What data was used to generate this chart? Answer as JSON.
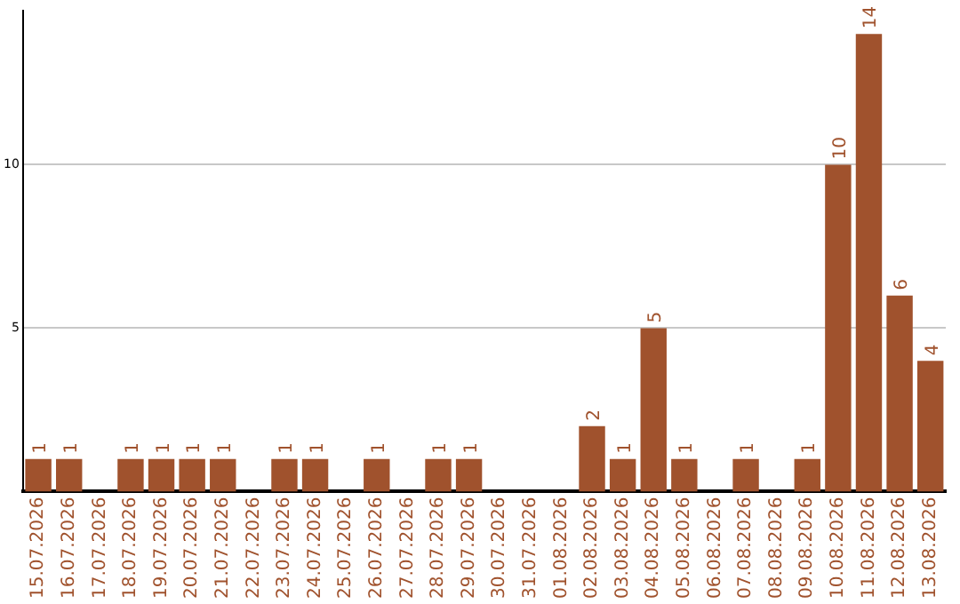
{
  "chart_data": {
    "type": "bar",
    "categories": [
      "15.07.2026",
      "16.07.2026",
      "17.07.2026",
      "18.07.2026",
      "19.07.2026",
      "20.07.2026",
      "21.07.2026",
      "22.07.2026",
      "23.07.2026",
      "24.07.2026",
      "25.07.2026",
      "26.07.2026",
      "27.07.2026",
      "28.07.2026",
      "29.07.2026",
      "30.07.2026",
      "31.07.2026",
      "01.08.2026",
      "02.08.2026",
      "03.08.2026",
      "04.08.2026",
      "05.08.2026",
      "06.08.2026",
      "07.08.2026",
      "08.08.2026",
      "09.08.2026",
      "10.08.2026",
      "11.08.2026",
      "12.08.2026",
      "13.08.2026"
    ],
    "values": [
      1,
      1,
      0,
      1,
      1,
      1,
      1,
      0,
      1,
      1,
      0,
      1,
      0,
      1,
      1,
      0,
      0,
      0,
      2,
      1,
      5,
      1,
      0,
      1,
      0,
      1,
      10,
      14,
      6,
      4
    ],
    "value_labels": [
      "1",
      "1",
      null,
      "1",
      "1",
      "1",
      "1",
      null,
      "1",
      "1",
      null,
      "1",
      null,
      "1",
      "1",
      null,
      null,
      null,
      "2",
      "1",
      "5",
      "1",
      null,
      "1",
      null,
      "1",
      "10",
      "14",
      "6",
      "4"
    ],
    "color": "#a0522d",
    "ylim": [
      0,
      14.7
    ],
    "yticks": [
      5,
      10
    ],
    "grid": "y",
    "legend": false
  }
}
